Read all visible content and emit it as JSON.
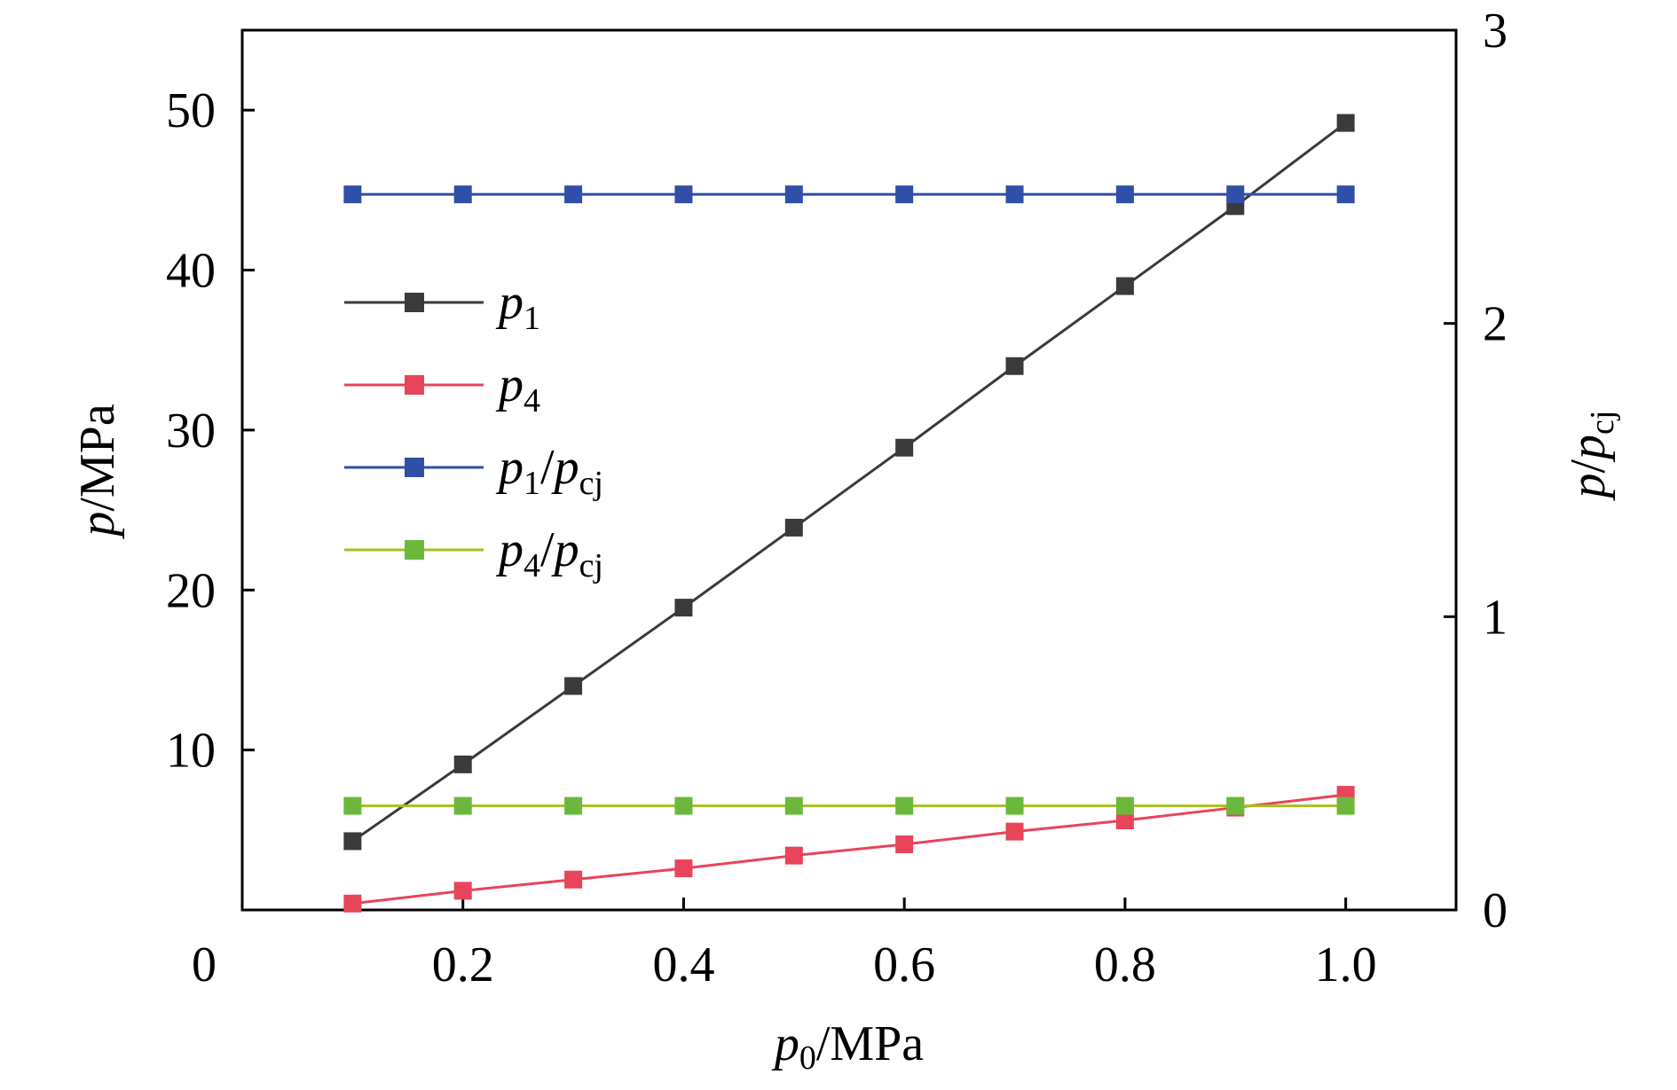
{
  "chart_data": {
    "type": "line",
    "x_axis": {
      "label_var": "p",
      "label_sub": "0",
      "label_unit": "/MPa",
      "range": [
        0,
        1.1
      ],
      "ticks": [
        0,
        0.2,
        0.4,
        0.6,
        0.8,
        1.0
      ],
      "tick_labels": [
        "0",
        "0.2",
        "0.4",
        "0.6",
        "0.8",
        "1.0"
      ]
    },
    "y_axis_left": {
      "label_var": "p",
      "label_unit": "/MPa",
      "range": [
        0,
        55
      ],
      "ticks": [
        10,
        20,
        30,
        40,
        50
      ],
      "tick_labels": [
        "10",
        "20",
        "30",
        "40",
        "50"
      ]
    },
    "y_axis_right": {
      "label_var": "p",
      "label_sep": "/",
      "label_var2": "p",
      "label_sub2": "cj",
      "range": [
        0,
        3
      ],
      "ticks": [
        0,
        1,
        2,
        3
      ],
      "tick_labels": [
        "0",
        "1",
        "2",
        "3"
      ]
    },
    "x": [
      0.1,
      0.2,
      0.3,
      0.4,
      0.5,
      0.6,
      0.7,
      0.8,
      0.9,
      1.0
    ],
    "series": [
      {
        "name_var": "p",
        "name_sub": "1",
        "name_rest": "",
        "name_sub2": "",
        "axis": "left",
        "color": "#3a3a3a",
        "values": [
          4.3,
          9.1,
          14.0,
          18.9,
          23.9,
          28.9,
          34.0,
          39.0,
          44.0,
          49.2
        ]
      },
      {
        "name_var": "p",
        "name_sub": "4",
        "name_rest": "",
        "name_sub2": "",
        "axis": "left",
        "color": "#e8445a",
        "values": [
          0.4,
          1.2,
          1.9,
          2.6,
          3.4,
          4.1,
          4.9,
          5.6,
          6.4,
          7.2
        ]
      },
      {
        "name_var": "p",
        "name_sub": "1",
        "name_rest": "/p",
        "name_sub2": "cj",
        "axis": "right",
        "color": "#2f4fa8",
        "values": [
          2.44,
          2.44,
          2.44,
          2.44,
          2.44,
          2.44,
          2.44,
          2.44,
          2.44,
          2.44
        ]
      },
      {
        "name_var": "p",
        "name_sub": "4",
        "name_rest": "/p",
        "name_sub2": "cj",
        "axis": "right",
        "color": "#6cb83d",
        "line_color": "#a5c020",
        "values": [
          0.355,
          0.355,
          0.355,
          0.355,
          0.355,
          0.355,
          0.355,
          0.355,
          0.355,
          0.355
        ]
      }
    ],
    "grid": false,
    "legend_position": "upper-left"
  }
}
